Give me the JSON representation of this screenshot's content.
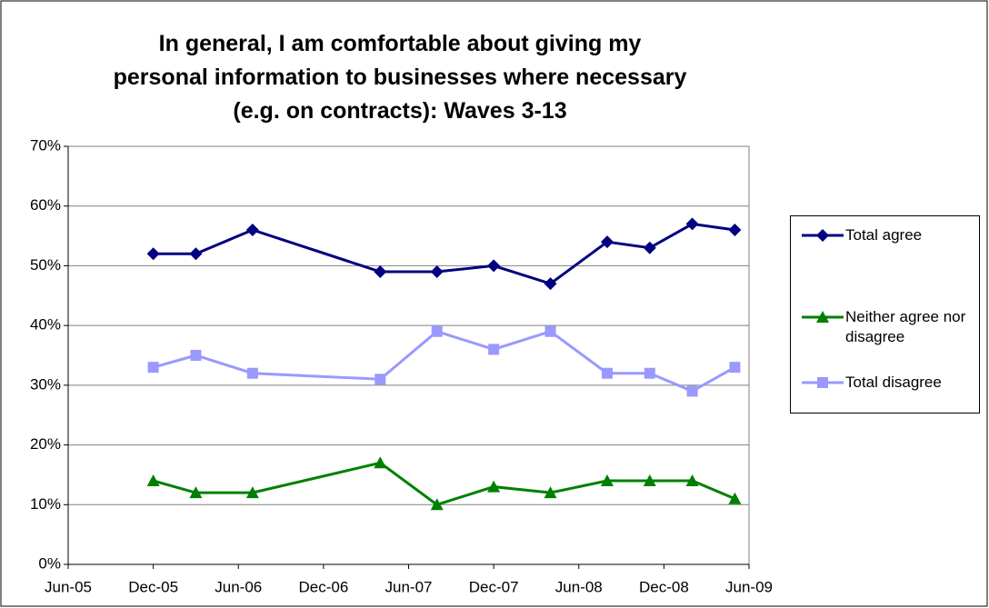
{
  "chart_data": {
    "type": "line",
    "title": "In general, I am comfortable about giving my personal information to businesses where necessary (e.g. on contracts): Waves 3-13",
    "x": [
      "2005-12",
      "2006-03",
      "2006-07",
      "2007-04",
      "2007-08",
      "2007-12",
      "2008-04",
      "2008-08",
      "2008-11",
      "2009-02",
      "2009-05"
    ],
    "series": [
      {
        "name": "Total agree",
        "color": "#000080",
        "marker": "diamond",
        "values": [
          52,
          52,
          56,
          49,
          49,
          50,
          47,
          54,
          53,
          57,
          56
        ]
      },
      {
        "name": "Neither agree nor disagree",
        "color": "#008000",
        "marker": "triangle",
        "values": [
          14,
          12,
          12,
          17,
          10,
          13,
          12,
          14,
          14,
          14,
          11
        ]
      },
      {
        "name": "Total disagree",
        "color": "#9999ff",
        "marker": "square",
        "values": [
          33,
          35,
          32,
          31,
          39,
          36,
          39,
          32,
          32,
          29,
          33
        ]
      }
    ],
    "xlim": [
      "2005-06",
      "2009-06"
    ],
    "xticks": [
      {
        "value": "2005-06",
        "label": "Jun-05"
      },
      {
        "value": "2005-12",
        "label": "Dec-05"
      },
      {
        "value": "2006-06",
        "label": "Jun-06"
      },
      {
        "value": "2006-12",
        "label": "Dec-06"
      },
      {
        "value": "2007-06",
        "label": "Jun-07"
      },
      {
        "value": "2007-12",
        "label": "Dec-07"
      },
      {
        "value": "2008-06",
        "label": "Jun-08"
      },
      {
        "value": "2008-12",
        "label": "Dec-08"
      },
      {
        "value": "2009-06",
        "label": "Jun-09"
      }
    ],
    "ylim": [
      0,
      70
    ],
    "yticks": [
      {
        "value": 0,
        "label": "0%"
      },
      {
        "value": 10,
        "label": "10%"
      },
      {
        "value": 20,
        "label": "20%"
      },
      {
        "value": 30,
        "label": "30%"
      },
      {
        "value": 40,
        "label": "40%"
      },
      {
        "value": 50,
        "label": "50%"
      },
      {
        "value": 60,
        "label": "60%"
      },
      {
        "value": 70,
        "label": "70%"
      }
    ],
    "grid": true,
    "legend": "right"
  }
}
